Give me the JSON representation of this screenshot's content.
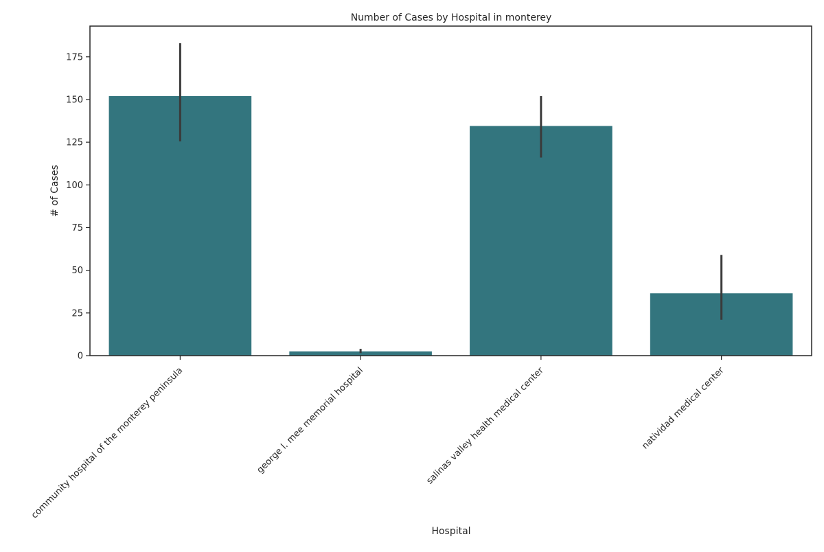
{
  "chart_data": {
    "type": "bar",
    "title": "Number of Cases by Hospital in monterey",
    "xlabel": "Hospital",
    "ylabel": "# of Cases",
    "categories": [
      "community hospital of the monterey peninsula",
      "george l. mee memorial hospital",
      "salinas valley health medical center",
      "natividad medical center"
    ],
    "values": [
      152,
      2.5,
      134.5,
      36.5
    ],
    "error_bars": [
      {
        "low": 125.5,
        "high": 183
      },
      {
        "low": 1.5,
        "high": 4
      },
      {
        "low": 116,
        "high": 152
      },
      {
        "low": 21,
        "high": 59
      }
    ],
    "ylim": [
      0,
      193
    ],
    "yticks": [
      0,
      25,
      50,
      75,
      100,
      125,
      150,
      175
    ],
    "grid": false,
    "bar_color": "#33757e",
    "error_color": "#3a3a3a"
  }
}
